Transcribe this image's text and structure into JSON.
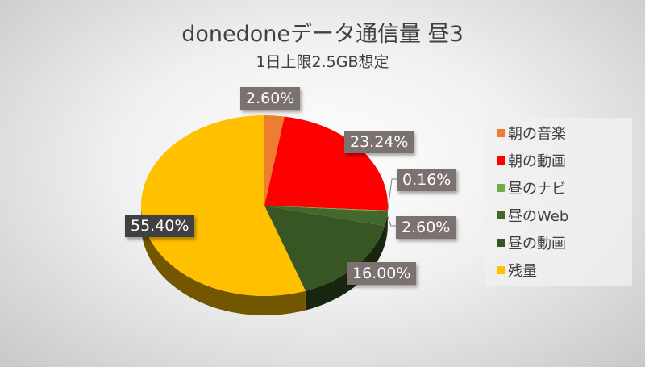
{
  "chart_data": {
    "type": "pie",
    "title": "donedoneデータ通信量 昼3",
    "subtitle": "1日上限2.5GB想定",
    "legend_position": "right",
    "slices": [
      {
        "name": "朝の音楽",
        "value": 2.6,
        "label": "2.60%",
        "color": "#ed7d31"
      },
      {
        "name": "朝の動画",
        "value": 23.24,
        "label": "23.24%",
        "color": "#ff0000"
      },
      {
        "name": "昼のナビ",
        "value": 0.16,
        "label": "0.16%",
        "color": "#70ad47"
      },
      {
        "name": "昼のWeb",
        "value": 2.6,
        "label": "2.60%",
        "color": "#43682b"
      },
      {
        "name": "昼の動画",
        "value": 16.0,
        "label": "16.00%",
        "color": "#375623"
      },
      {
        "name": "残量",
        "value": 55.4,
        "label": "55.40%",
        "color": "#ffc000"
      }
    ]
  }
}
